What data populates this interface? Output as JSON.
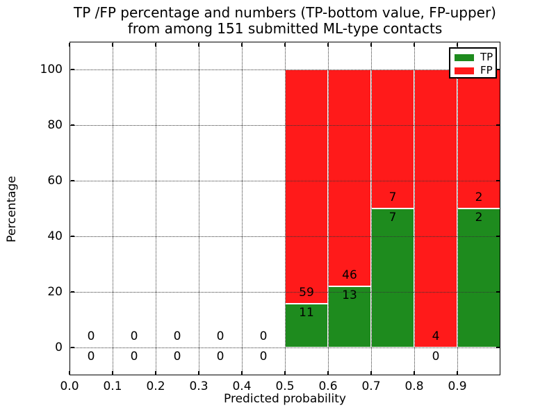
{
  "chart_data": {
    "type": "bar",
    "stacked": true,
    "title_line1": "TP /FP percentage and numbers (TP-bottom value, FP-upper)",
    "title_line2": "from among 151 submitted ML-type contacts",
    "xlabel": "Predicted probability",
    "ylabel": "Percentage",
    "xlim": [
      0.0,
      1.0
    ],
    "ylim": [
      -10,
      110
    ],
    "xticks": [
      0.0,
      0.1,
      0.2,
      0.3,
      0.4,
      0.5,
      0.6,
      0.7,
      0.8,
      0.9
    ],
    "xtick_labels": [
      "0.0",
      "0.1",
      "0.2",
      "0.3",
      "0.4",
      "0.5",
      "0.6",
      "0.7",
      "0.8",
      "0.9"
    ],
    "yticks": [
      0,
      20,
      40,
      60,
      80,
      100
    ],
    "ytick_labels": [
      "0",
      "20",
      "40",
      "60",
      "80",
      "100"
    ],
    "grid": true,
    "grid_style": "dotted",
    "legend_position": "upper right",
    "total_submitted": 151,
    "series": [
      {
        "name": "TP",
        "color": "#1e8b1e"
      },
      {
        "name": "FP",
        "color": "#ff1a1a"
      }
    ],
    "bins": [
      {
        "x_start": 0.0,
        "x_end": 0.1,
        "tp": 0,
        "fp": 0
      },
      {
        "x_start": 0.1,
        "x_end": 0.2,
        "tp": 0,
        "fp": 0
      },
      {
        "x_start": 0.2,
        "x_end": 0.3,
        "tp": 0,
        "fp": 0
      },
      {
        "x_start": 0.3,
        "x_end": 0.4,
        "tp": 0,
        "fp": 0
      },
      {
        "x_start": 0.4,
        "x_end": 0.5,
        "tp": 0,
        "fp": 0
      },
      {
        "x_start": 0.5,
        "x_end": 0.6,
        "tp": 11,
        "fp": 59
      },
      {
        "x_start": 0.6,
        "x_end": 0.7,
        "tp": 13,
        "fp": 46
      },
      {
        "x_start": 0.7,
        "x_end": 0.8,
        "tp": 7,
        "fp": 7
      },
      {
        "x_start": 0.8,
        "x_end": 0.9,
        "tp": 0,
        "fp": 4
      },
      {
        "x_start": 0.9,
        "x_end": 1.0,
        "tp": 2,
        "fp": 2
      }
    ]
  }
}
